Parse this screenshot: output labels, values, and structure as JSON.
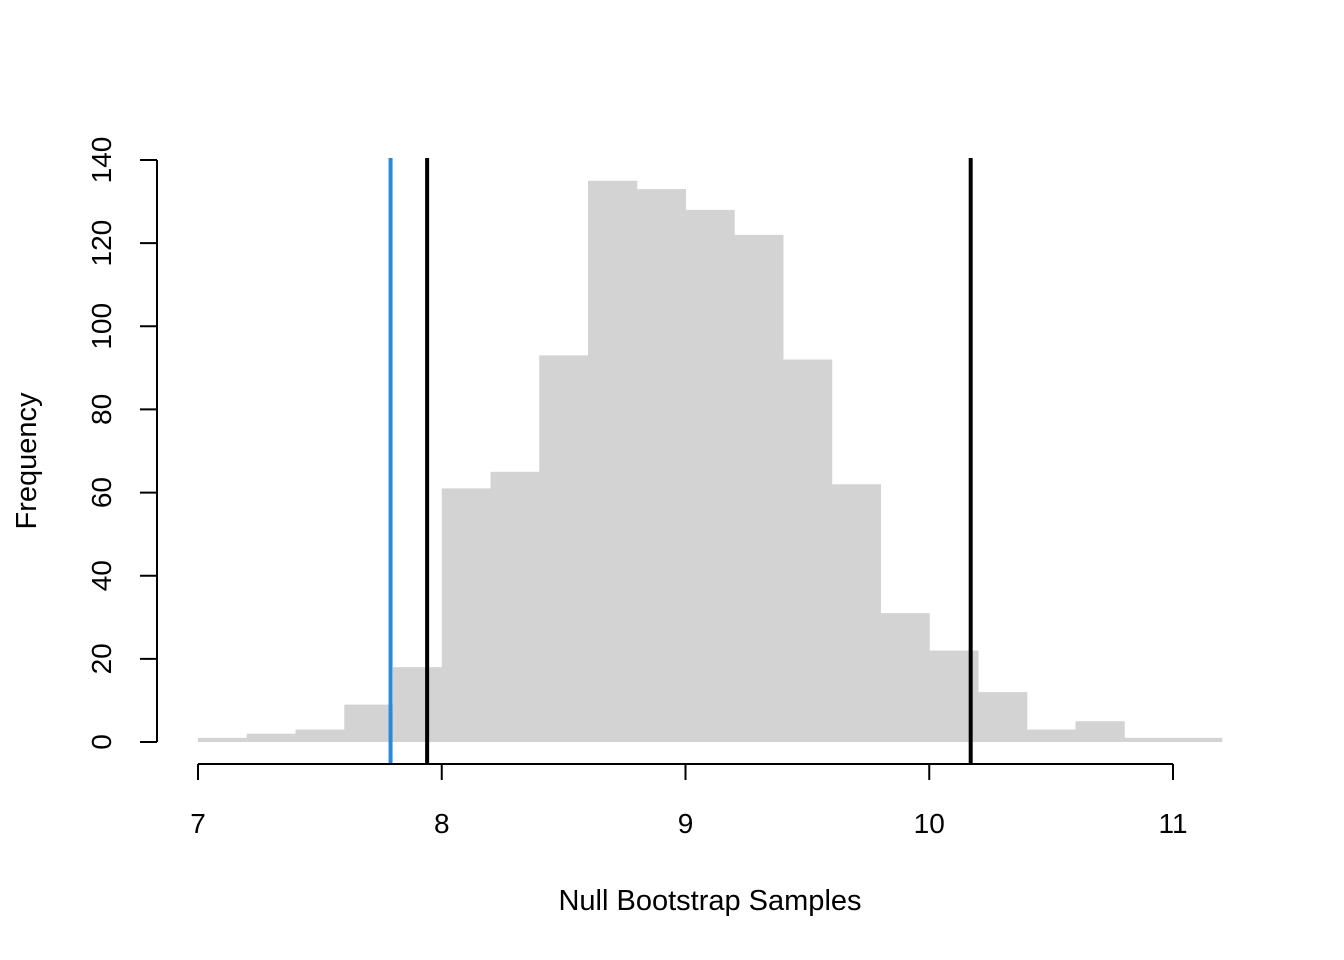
{
  "chart_data": {
    "type": "bar",
    "title": "",
    "xlabel": "Null Bootstrap Samples",
    "ylabel": "Frequency",
    "bins": [
      {
        "x0": 7.0,
        "x1": 7.2,
        "count": 1
      },
      {
        "x0": 7.2,
        "x1": 7.4,
        "count": 2
      },
      {
        "x0": 7.4,
        "x1": 7.6,
        "count": 3
      },
      {
        "x0": 7.6,
        "x1": 7.8,
        "count": 9
      },
      {
        "x0": 7.8,
        "x1": 8.0,
        "count": 18
      },
      {
        "x0": 8.0,
        "x1": 8.2,
        "count": 61
      },
      {
        "x0": 8.2,
        "x1": 8.4,
        "count": 65
      },
      {
        "x0": 8.4,
        "x1": 8.6,
        "count": 93
      },
      {
        "x0": 8.6,
        "x1": 8.8,
        "count": 135
      },
      {
        "x0": 8.8,
        "x1": 9.0,
        "count": 133
      },
      {
        "x0": 9.0,
        "x1": 9.2,
        "count": 128
      },
      {
        "x0": 9.2,
        "x1": 9.4,
        "count": 122
      },
      {
        "x0": 9.4,
        "x1": 9.6,
        "count": 92
      },
      {
        "x0": 9.6,
        "x1": 9.8,
        "count": 62
      },
      {
        "x0": 9.8,
        "x1": 10.0,
        "count": 31
      },
      {
        "x0": 10.0,
        "x1": 10.2,
        "count": 22
      },
      {
        "x0": 10.2,
        "x1": 10.4,
        "count": 12
      },
      {
        "x0": 10.4,
        "x1": 10.6,
        "count": 3
      },
      {
        "x0": 10.6,
        "x1": 10.8,
        "count": 5
      },
      {
        "x0": 10.8,
        "x1": 11.0,
        "count": 1
      },
      {
        "x0": 11.0,
        "x1": 11.2,
        "count": 1
      }
    ],
    "xticks": [
      7,
      8,
      9,
      10,
      11
    ],
    "yticks": [
      0,
      20,
      40,
      60,
      80,
      100,
      120,
      140
    ],
    "xlim": [
      7,
      11.2
    ],
    "ylim": [
      0,
      140
    ],
    "vlines": [
      {
        "x": 7.79,
        "color": "#2a8ad8"
      },
      {
        "x": 7.94,
        "color": "#000000"
      },
      {
        "x": 10.17,
        "color": "#000000"
      }
    ],
    "bar_color": "#d3d3d3",
    "grid": false
  }
}
